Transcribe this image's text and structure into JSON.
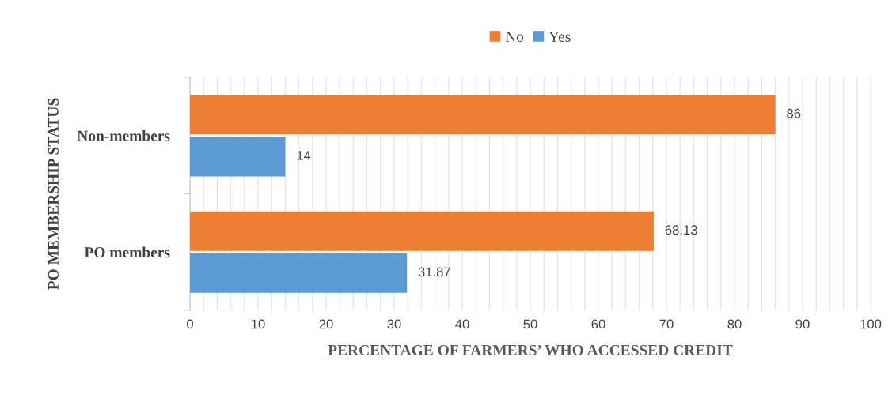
{
  "chart_data": {
    "type": "bar",
    "orientation": "horizontal",
    "categories": [
      "Non-members",
      "PO members"
    ],
    "series": [
      {
        "name": "No",
        "color": "#ed7d31",
        "values": [
          86,
          68.13
        ]
      },
      {
        "name": "Yes",
        "color": "#5b9bd5",
        "values": [
          14,
          31.87
        ]
      }
    ],
    "xlabel": "PERCENTAGE OF FARMERS’ WHO ACCESSED CREDIT",
    "ylabel": "PO MEMBERSHIP STATUS",
    "xlim": [
      0,
      100
    ],
    "xticks": [
      0,
      {
        "value": 2,
        "label": null
      },
      {
        "value": 4,
        "label": null
      },
      {
        "value": 6,
        "label": null
      },
      {
        "value": 8,
        "label": null
      },
      10,
      {
        "value": 12,
        "label": null
      },
      {
        "value": 14,
        "label": null
      },
      {
        "value": 16,
        "label": null
      },
      {
        "value": 18,
        "label": null
      },
      20,
      {
        "value": 22,
        "label": null
      },
      {
        "value": 24,
        "label": null
      },
      {
        "value": 26,
        "label": null
      },
      {
        "value": 28,
        "label": null
      },
      30,
      {
        "value": 32,
        "label": null
      },
      {
        "value": 34,
        "label": null
      },
      {
        "value": 36,
        "label": null
      },
      {
        "value": 38,
        "label": null
      },
      40,
      {
        "value": 42,
        "label": null
      },
      {
        "value": 44,
        "label": null
      },
      {
        "value": 46,
        "label": null
      },
      {
        "value": 48,
        "label": null
      },
      50,
      {
        "value": 52,
        "label": null
      },
      {
        "value": 54,
        "label": null
      },
      {
        "value": 56,
        "label": null
      },
      {
        "value": 58,
        "label": null
      },
      60,
      {
        "value": 62,
        "label": null
      },
      {
        "value": 64,
        "label": null
      },
      {
        "value": 66,
        "label": null
      },
      {
        "value": 68,
        "label": null
      },
      70,
      {
        "value": 72,
        "label": null
      },
      {
        "value": 74,
        "label": null
      },
      {
        "value": 76,
        "label": null
      },
      {
        "value": 78,
        "label": null
      },
      80,
      {
        "value": 82,
        "label": null
      },
      {
        "value": 84,
        "label": null
      },
      {
        "value": 86,
        "label": null
      },
      {
        "value": 88,
        "label": null
      },
      90,
      {
        "value": 92,
        "label": null
      },
      {
        "value": 94,
        "label": null
      },
      {
        "value": 96,
        "label": null
      },
      {
        "value": 98,
        "label": null
      },
      100
    ],
    "grid": "x",
    "legend": "top",
    "data_labels": true
  }
}
